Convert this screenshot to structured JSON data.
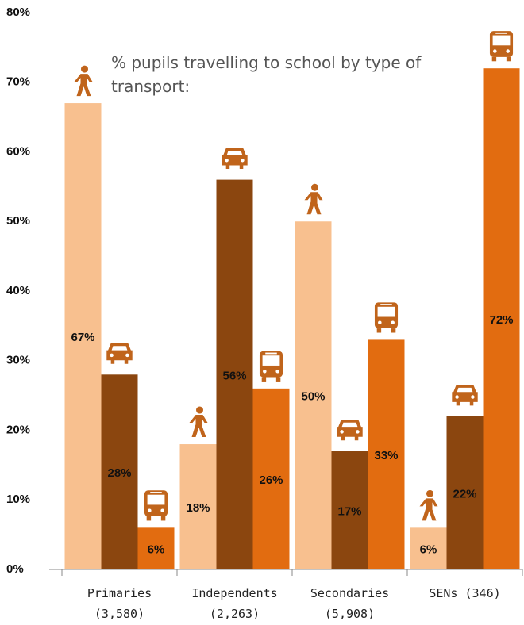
{
  "chart_data": {
    "type": "bar",
    "title": "% pupils travelling to school by type of transport:",
    "categories": [
      "Primaries (3,580)",
      "Independents (2,263)",
      "Secondaries (5,908)",
      "SENs (346)"
    ],
    "series": [
      {
        "color": "#f8c08f",
        "values": [
          67,
          18,
          50,
          6
        ],
        "value_labels": [
          "67%",
          "18%",
          "50%",
          "6%"
        ]
      },
      {
        "color": "#8b460f",
        "values": [
          28,
          56,
          17,
          22
        ],
        "value_labels": [
          "28%",
          "56%",
          "17%",
          "22%"
        ]
      },
      {
        "color": "#e26c10",
        "values": [
          6,
          26,
          33,
          72
        ],
        "value_labels": [
          "6%",
          "26%",
          "33%",
          "72%"
        ]
      }
    ],
    "ylim": [
      0,
      80
    ],
    "yticks": [
      {
        "value": 0,
        "label": "0%"
      },
      {
        "value": 10,
        "label": "10%"
      },
      {
        "value": 20,
        "label": "20%"
      },
      {
        "value": 30,
        "label": "30%"
      },
      {
        "value": 40,
        "label": "40%"
      },
      {
        "value": 50,
        "label": "50%"
      },
      {
        "value": 60,
        "label": "60%"
      },
      {
        "value": 70,
        "label": "70%"
      },
      {
        "value": 80,
        "label": "80%"
      }
    ],
    "grid": false
  }
}
